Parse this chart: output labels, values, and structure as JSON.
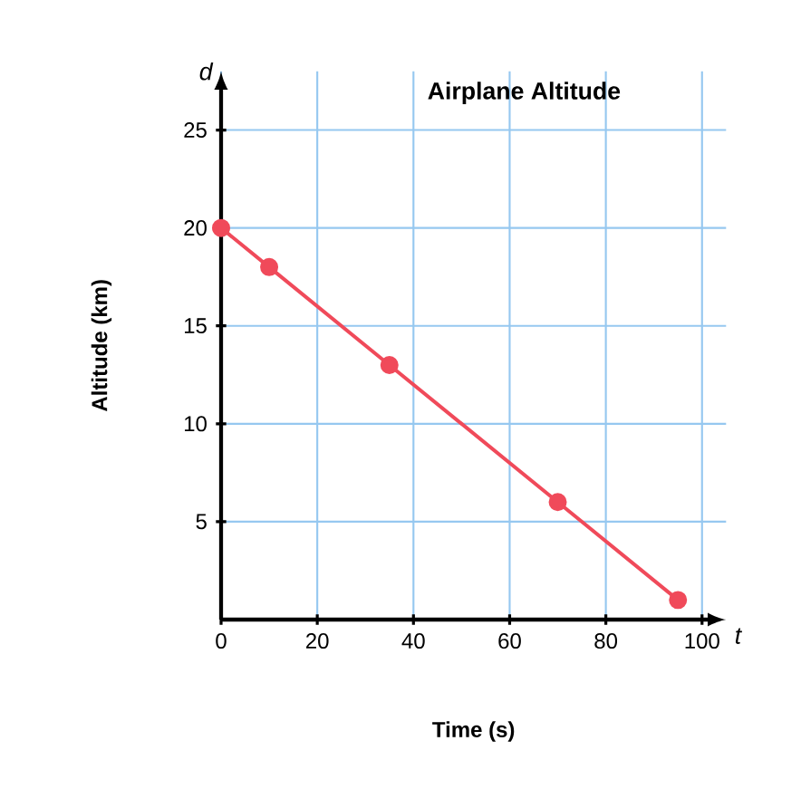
{
  "chart_data": {
    "type": "line",
    "title": "Airplane Altitude",
    "xlabel": "Time (s)",
    "ylabel": "Altitude (km)",
    "annotations": [
      "d",
      "t"
    ],
    "x": [
      0,
      10,
      35,
      70,
      95
    ],
    "series": [
      {
        "color": "#f04a5a",
        "values": [
          20,
          18,
          13,
          6,
          1
        ]
      }
    ],
    "xlim": [
      0,
      105
    ],
    "ylim": [
      0,
      28
    ],
    "xticks": [
      0,
      20,
      40,
      60,
      80,
      100
    ],
    "yticks": [
      5,
      10,
      15,
      20,
      25
    ],
    "grid": true,
    "marker": "circle",
    "line_style": "solid"
  }
}
